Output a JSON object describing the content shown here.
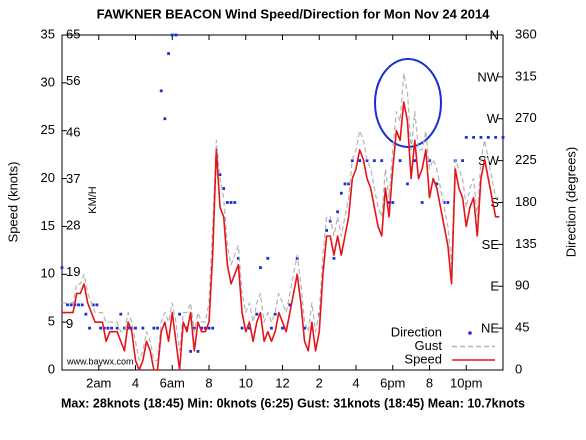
{
  "chart_data": {
    "type": "line",
    "title": "FAWKNER BEACON Wind Speed/Direction for Mon Nov 24 2014",
    "footer": "Max: 28knots (18:45) Min: 0knots (6:25) Gust: 31knots (18:45) Mean: 10.7knots",
    "ylabel": "Speed (knots)",
    "y2label": "Direction (degrees)",
    "kmh_label": "KM/H",
    "credit": "www.baywx.com",
    "xlim": [
      0,
      24
    ],
    "xticks": [
      {
        "value": 2,
        "label": "2am"
      },
      4,
      {
        "value": 6,
        "label": "6am"
      },
      8,
      10,
      12,
      {
        "value": 14,
        "label": "2"
      },
      {
        "value": 16,
        "label": "4"
      },
      {
        "value": 18,
        "label": "6pm"
      },
      {
        "value": 20,
        "label": "8"
      },
      {
        "value": 22,
        "label": "10pm"
      }
    ],
    "ylim": [
      0,
      35
    ],
    "yticks": [
      0,
      5,
      10,
      15,
      20,
      25,
      30,
      35
    ],
    "kmh_lim": [
      0,
      64.82
    ],
    "kmh_ticks": [
      9,
      19,
      28,
      37,
      46,
      56,
      65
    ],
    "y2lim": [
      0,
      360
    ],
    "y2ticks": [
      0,
      45,
      90,
      135,
      180,
      225,
      270,
      315,
      360
    ],
    "compass_ticks": [
      {
        "value": 360,
        "label": "N"
      },
      {
        "value": 315,
        "label": "NW"
      },
      {
        "value": 270,
        "label": "W"
      },
      {
        "value": 225,
        "label": "SW"
      },
      {
        "value": 180,
        "label": "S"
      },
      {
        "value": 135,
        "label": "SE"
      },
      {
        "value": 90,
        "label": "E"
      },
      {
        "value": 45,
        "label": "NE"
      }
    ],
    "legend": "lower right",
    "series": [
      {
        "name": "Direction",
        "type": "scatter",
        "axis": "y2",
        "color": "#1a2ed6",
        "x": [
          0,
          0.3,
          0.5,
          0.7,
          0.9,
          1.1,
          1.3,
          1.5,
          1.7,
          1.9,
          2.1,
          2.3,
          2.5,
          2.7,
          3.0,
          3.2,
          3.4,
          3.6,
          3.8,
          4.0,
          4.4,
          5.0,
          5.2,
          5.4,
          5.6,
          5.8,
          6.0,
          6.2,
          6.4,
          6.8,
          7.0,
          7.2,
          7.4,
          7.6,
          7.8,
          8.0,
          8.2,
          8.4,
          8.6,
          8.8,
          9.0,
          9.2,
          9.4,
          9.6,
          9.8,
          10.2,
          10.6,
          10.8,
          11.2,
          11.4,
          11.6,
          12.0,
          12.4,
          12.8,
          13.2,
          13.6,
          14.0,
          14.2,
          14.4,
          14.6,
          14.8,
          15.0,
          15.2,
          15.4,
          15.6,
          15.8,
          16.2,
          16.6,
          17.0,
          17.4,
          17.8,
          18.0,
          18.4,
          18.8,
          19.2,
          19.6,
          20.0,
          20.4,
          20.8,
          21.0,
          21.4,
          21.8,
          22.0,
          22.4,
          22.8,
          23.2,
          23.6,
          24.0
        ],
        "values": [
          110,
          70,
          70,
          70,
          70,
          70,
          60,
          45,
          70,
          70,
          45,
          45,
          45,
          45,
          45,
          60,
          45,
          45,
          45,
          45,
          45,
          45,
          45,
          300,
          270,
          340,
          360,
          360,
          60,
          45,
          20,
          45,
          20,
          45,
          45,
          45,
          45,
          225,
          210,
          195,
          180,
          180,
          180,
          120,
          45,
          45,
          60,
          110,
          120,
          45,
          60,
          45,
          70,
          120,
          45,
          45,
          60,
          110,
          150,
          160,
          120,
          170,
          190,
          200,
          200,
          225,
          225,
          225,
          225,
          225,
          180,
          180,
          225,
          200,
          225,
          180,
          225,
          200,
          180,
          180,
          225,
          225,
          250,
          250,
          250,
          250,
          250,
          250
        ]
      },
      {
        "name": "Gust",
        "type": "line",
        "style": "dashed",
        "color": "#b4b4b4",
        "x": [
          0,
          0.2,
          0.4,
          0.6,
          0.8,
          1.0,
          1.2,
          1.4,
          1.6,
          1.8,
          2.0,
          2.2,
          2.4,
          2.6,
          2.8,
          3.0,
          3.2,
          3.4,
          3.6,
          3.8,
          4.0,
          4.2,
          4.4,
          4.6,
          4.8,
          5.0,
          5.2,
          5.4,
          5.6,
          5.8,
          6.0,
          6.2,
          6.4,
          6.6,
          6.8,
          7.0,
          7.2,
          7.4,
          7.6,
          7.8,
          8.0,
          8.2,
          8.4,
          8.6,
          8.8,
          9.0,
          9.2,
          9.4,
          9.6,
          9.8,
          10.0,
          10.2,
          10.4,
          10.6,
          10.8,
          11.0,
          11.2,
          11.4,
          11.6,
          11.8,
          12.0,
          12.2,
          12.4,
          12.6,
          12.8,
          13.0,
          13.2,
          13.4,
          13.6,
          13.8,
          14.0,
          14.2,
          14.4,
          14.6,
          14.8,
          15.0,
          15.2,
          15.4,
          15.6,
          15.8,
          16.0,
          16.2,
          16.4,
          16.6,
          16.8,
          17.0,
          17.2,
          17.4,
          17.6,
          17.8,
          18.0,
          18.2,
          18.4,
          18.6,
          18.8,
          19.0,
          19.2,
          19.4,
          19.6,
          19.8,
          20.0,
          20.2,
          20.4,
          20.6,
          20.8,
          21.0,
          21.2,
          21.4,
          21.6,
          21.8,
          22.0,
          22.2,
          22.4,
          22.6,
          22.8,
          23.0,
          23.2,
          23.4,
          23.6,
          23.8
        ],
        "values": [
          7,
          7,
          7,
          7,
          9,
          9,
          10,
          8,
          7,
          6,
          6,
          6,
          5,
          5,
          5,
          5,
          4,
          4,
          6,
          5,
          3,
          1,
          2,
          4,
          3,
          1,
          1,
          5,
          6,
          5,
          7,
          5,
          2,
          6,
          6,
          7,
          4,
          6,
          5,
          5,
          7,
          15,
          24,
          20,
          18,
          13,
          11,
          12,
          13,
          8,
          6,
          7,
          5,
          7,
          8,
          5,
          6,
          5,
          6,
          8,
          7,
          6,
          8,
          10,
          12,
          9,
          5,
          4,
          7,
          4,
          6,
          12,
          16,
          16,
          14,
          16,
          14,
          16,
          18,
          22,
          23,
          25,
          24,
          22,
          21,
          19,
          17,
          16,
          21,
          18,
          23,
          27,
          26,
          31,
          29,
          23,
          27,
          23,
          23,
          25,
          21,
          22,
          21,
          19,
          17,
          15,
          11,
          22,
          21,
          20,
          17,
          19,
          20,
          16,
          22,
          24,
          22,
          20,
          18,
          18
        ]
      },
      {
        "name": "Speed",
        "type": "line",
        "style": "solid",
        "color": "#e5141a",
        "x": [
          0,
          0.2,
          0.4,
          0.6,
          0.8,
          1.0,
          1.2,
          1.4,
          1.6,
          1.8,
          2.0,
          2.2,
          2.4,
          2.6,
          2.8,
          3.0,
          3.2,
          3.4,
          3.6,
          3.8,
          4.0,
          4.2,
          4.4,
          4.6,
          4.8,
          5.0,
          5.2,
          5.4,
          5.6,
          5.8,
          6.0,
          6.2,
          6.4,
          6.6,
          6.8,
          7.0,
          7.2,
          7.4,
          7.6,
          7.8,
          8.0,
          8.2,
          8.4,
          8.6,
          8.8,
          9.0,
          9.2,
          9.4,
          9.6,
          9.8,
          10.0,
          10.2,
          10.4,
          10.6,
          10.8,
          11.0,
          11.2,
          11.4,
          11.6,
          11.8,
          12.0,
          12.2,
          12.4,
          12.6,
          12.8,
          13.0,
          13.2,
          13.4,
          13.6,
          13.8,
          14.0,
          14.2,
          14.4,
          14.6,
          14.8,
          15.0,
          15.2,
          15.4,
          15.6,
          15.8,
          16.0,
          16.2,
          16.4,
          16.6,
          16.8,
          17.0,
          17.2,
          17.4,
          17.6,
          17.8,
          18.0,
          18.2,
          18.4,
          18.6,
          18.8,
          19.0,
          19.2,
          19.4,
          19.6,
          19.8,
          20.0,
          20.2,
          20.4,
          20.6,
          20.8,
          21.0,
          21.2,
          21.4,
          21.6,
          21.8,
          22.0,
          22.2,
          22.4,
          22.6,
          22.8,
          23.0,
          23.2,
          23.4,
          23.6,
          23.8
        ],
        "values": [
          6,
          6,
          6,
          6,
          8,
          8,
          9,
          7,
          6,
          5,
          5,
          5,
          3,
          4,
          4,
          4,
          3,
          2,
          5,
          4,
          1,
          0,
          1,
          3,
          2,
          0,
          0,
          4,
          5,
          3,
          6,
          3,
          0,
          5,
          4,
          6,
          2,
          5,
          4,
          4,
          5,
          12,
          23,
          17,
          16,
          11,
          9,
          10,
          11,
          6,
          4,
          5,
          3,
          5,
          6,
          3,
          4,
          3,
          4,
          6,
          5,
          4,
          6,
          8,
          10,
          7,
          3,
          2,
          5,
          2,
          4,
          10,
          14,
          14,
          12,
          14,
          12,
          14,
          16,
          20,
          21,
          23,
          22,
          20,
          19,
          17,
          15,
          14,
          19,
          16,
          21,
          25,
          24,
          28,
          26,
          20,
          24,
          20,
          21,
          23,
          18,
          20,
          19,
          17,
          15,
          13,
          9,
          21,
          19,
          18,
          15,
          17,
          18,
          14,
          20,
          22,
          20,
          18,
          16,
          16
        ]
      }
    ]
  }
}
